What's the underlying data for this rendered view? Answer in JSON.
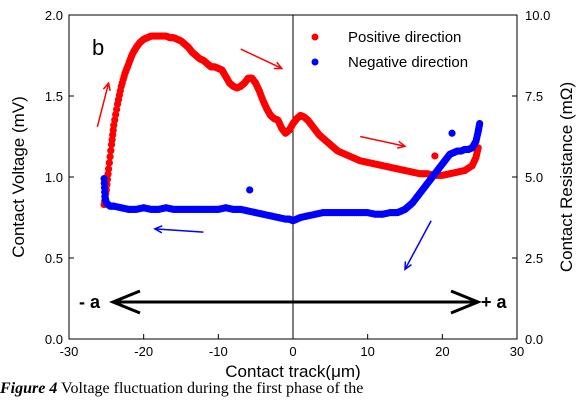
{
  "chart_data": {
    "type": "scatter",
    "panel_label": "b",
    "xlabel": "Contact track(μm)",
    "ylabel": "Contact Voltage (mV)",
    "y2label": "Contact Resistance (mΩ)",
    "xlim": [
      -30,
      30
    ],
    "ylim": [
      0,
      2.0
    ],
    "y2lim": [
      0,
      10.0
    ],
    "xticks": [
      "-30",
      "-20",
      "-10",
      "0",
      "10",
      "20",
      "30"
    ],
    "yticks": [
      "0.0",
      "0.5",
      "1.0",
      "1.5",
      "2.0"
    ],
    "y2ticks": [
      "0.0",
      "2.5",
      "5.0",
      "7.5",
      "10.0"
    ],
    "legend_position": "top-right",
    "amplitude_labels": {
      "left": "- a",
      "right": "+ a"
    },
    "series": [
      {
        "name": "Positive direction",
        "color": "#ff0000",
        "points": [
          [
            -25.3,
            0.83
          ],
          [
            -25.0,
            0.92
          ],
          [
            -24.7,
            1.05
          ],
          [
            -24.3,
            1.2
          ],
          [
            -24.0,
            1.32
          ],
          [
            -23.5,
            1.45
          ],
          [
            -23.0,
            1.56
          ],
          [
            -22.5,
            1.64
          ],
          [
            -22.0,
            1.7
          ],
          [
            -21.5,
            1.76
          ],
          [
            -21.0,
            1.8
          ],
          [
            -20.5,
            1.83
          ],
          [
            -20.0,
            1.85
          ],
          [
            -19.5,
            1.86
          ],
          [
            -19.0,
            1.87
          ],
          [
            -18.5,
            1.87
          ],
          [
            -18.0,
            1.87
          ],
          [
            -17.5,
            1.87
          ],
          [
            -17.0,
            1.87
          ],
          [
            -16.5,
            1.86
          ],
          [
            -16.0,
            1.86
          ],
          [
            -15.5,
            1.85
          ],
          [
            -15.0,
            1.84
          ],
          [
            -14.5,
            1.82
          ],
          [
            -14.0,
            1.8
          ],
          [
            -13.5,
            1.77
          ],
          [
            -13.0,
            1.75
          ],
          [
            -12.5,
            1.73
          ],
          [
            -12.0,
            1.72
          ],
          [
            -11.5,
            1.7
          ],
          [
            -11.0,
            1.68
          ],
          [
            -10.5,
            1.68
          ],
          [
            -10.0,
            1.67
          ],
          [
            -9.5,
            1.66
          ],
          [
            -9.0,
            1.62
          ],
          [
            -8.5,
            1.58
          ],
          [
            -8.0,
            1.56
          ],
          [
            -7.5,
            1.55
          ],
          [
            -7.0,
            1.56
          ],
          [
            -6.5,
            1.58
          ],
          [
            -6.0,
            1.61
          ],
          [
            -5.5,
            1.61
          ],
          [
            -5.0,
            1.58
          ],
          [
            -4.5,
            1.53
          ],
          [
            -4.0,
            1.47
          ],
          [
            -3.5,
            1.42
          ],
          [
            -3.0,
            1.38
          ],
          [
            -2.5,
            1.36
          ],
          [
            -2.0,
            1.35
          ],
          [
            -1.5,
            1.3
          ],
          [
            -1.0,
            1.27
          ],
          [
            -0.5,
            1.29
          ],
          [
            0.0,
            1.33
          ],
          [
            0.5,
            1.36
          ],
          [
            1.0,
            1.38
          ],
          [
            1.5,
            1.37
          ],
          [
            2.0,
            1.35
          ],
          [
            2.5,
            1.32
          ],
          [
            3.0,
            1.29
          ],
          [
            3.5,
            1.26
          ],
          [
            4.0,
            1.24
          ],
          [
            4.5,
            1.22
          ],
          [
            5.0,
            1.2
          ],
          [
            5.5,
            1.18
          ],
          [
            6.0,
            1.16
          ],
          [
            7.0,
            1.14
          ],
          [
            8.0,
            1.12
          ],
          [
            9.0,
            1.1
          ],
          [
            10.0,
            1.09
          ],
          [
            11.0,
            1.08
          ],
          [
            12.0,
            1.07
          ],
          [
            13.0,
            1.06
          ],
          [
            14.0,
            1.05
          ],
          [
            15.0,
            1.04
          ],
          [
            16.0,
            1.03
          ],
          [
            17.0,
            1.02
          ],
          [
            18.0,
            1.02
          ],
          [
            19.0,
            1.01
          ],
          [
            20.0,
            1.01
          ],
          [
            21.0,
            1.02
          ],
          [
            22.0,
            1.03
          ],
          [
            23.0,
            1.04
          ],
          [
            24.0,
            1.07
          ],
          [
            24.5,
            1.12
          ],
          [
            24.8,
            1.18
          ],
          [
            19.0,
            1.13
          ]
        ]
      },
      {
        "name": "Negative direction",
        "color": "#0000ff",
        "points": [
          [
            25.0,
            1.33
          ],
          [
            24.8,
            1.28
          ],
          [
            24.5,
            1.22
          ],
          [
            24.0,
            1.18
          ],
          [
            23.5,
            1.17
          ],
          [
            23.0,
            1.17
          ],
          [
            22.5,
            1.16
          ],
          [
            22.0,
            1.16
          ],
          [
            21.5,
            1.15
          ],
          [
            21.0,
            1.14
          ],
          [
            20.5,
            1.11
          ],
          [
            20.0,
            1.08
          ],
          [
            19.5,
            1.05
          ],
          [
            19.0,
            1.02
          ],
          [
            18.5,
            0.99
          ],
          [
            18.0,
            0.96
          ],
          [
            17.5,
            0.93
          ],
          [
            17.0,
            0.9
          ],
          [
            16.5,
            0.87
          ],
          [
            16.0,
            0.84
          ],
          [
            15.5,
            0.82
          ],
          [
            15.0,
            0.8
          ],
          [
            14.5,
            0.79
          ],
          [
            14.0,
            0.78
          ],
          [
            13.0,
            0.78
          ],
          [
            12.0,
            0.77
          ],
          [
            11.0,
            0.77
          ],
          [
            10.0,
            0.78
          ],
          [
            9.0,
            0.78
          ],
          [
            8.0,
            0.78
          ],
          [
            7.0,
            0.78
          ],
          [
            6.0,
            0.78
          ],
          [
            5.0,
            0.78
          ],
          [
            4.0,
            0.78
          ],
          [
            3.0,
            0.77
          ],
          [
            2.0,
            0.76
          ],
          [
            1.0,
            0.75
          ],
          [
            0.5,
            0.74
          ],
          [
            0.0,
            0.73
          ],
          [
            -0.5,
            0.74
          ],
          [
            -1.0,
            0.74
          ],
          [
            -2.0,
            0.75
          ],
          [
            -3.0,
            0.76
          ],
          [
            -4.0,
            0.77
          ],
          [
            -5.0,
            0.78
          ],
          [
            -6.0,
            0.79
          ],
          [
            -7.0,
            0.8
          ],
          [
            -8.0,
            0.8
          ],
          [
            -9.0,
            0.81
          ],
          [
            -10.0,
            0.8
          ],
          [
            -11.0,
            0.8
          ],
          [
            -12.0,
            0.8
          ],
          [
            -13.0,
            0.8
          ],
          [
            -14.0,
            0.8
          ],
          [
            -15.0,
            0.8
          ],
          [
            -16.0,
            0.8
          ],
          [
            -17.0,
            0.81
          ],
          [
            -18.0,
            0.8
          ],
          [
            -19.0,
            0.8
          ],
          [
            -20.0,
            0.81
          ],
          [
            -21.0,
            0.8
          ],
          [
            -22.0,
            0.8
          ],
          [
            -23.0,
            0.81
          ],
          [
            -24.0,
            0.82
          ],
          [
            -24.5,
            0.82
          ],
          [
            -25.0,
            0.84
          ],
          [
            -25.2,
            0.88
          ],
          [
            -25.3,
            0.99
          ],
          [
            21.3,
            1.27
          ],
          [
            -5.8,
            0.92
          ]
        ]
      }
    ],
    "direction_arrows": [
      {
        "color": "#ff0000",
        "from": [
          -26.2,
          1.31
        ],
        "to": [
          -24.7,
          1.58
        ]
      },
      {
        "color": "#ff0000",
        "from": [
          -7.0,
          1.79
        ],
        "to": [
          -1.5,
          1.67
        ]
      },
      {
        "color": "#ff0000",
        "from": [
          9.0,
          1.25
        ],
        "to": [
          15.0,
          1.19
        ]
      },
      {
        "color": "#0000ff",
        "from": [
          -12.0,
          0.66
        ],
        "to": [
          -18.5,
          0.68
        ]
      },
      {
        "color": "#0000ff",
        "from": [
          18.5,
          0.73
        ],
        "to": [
          15.0,
          0.43
        ]
      }
    ]
  },
  "caption": {
    "label": "Figure 4",
    "text": " Voltage fluctuation during the first phase of the"
  }
}
